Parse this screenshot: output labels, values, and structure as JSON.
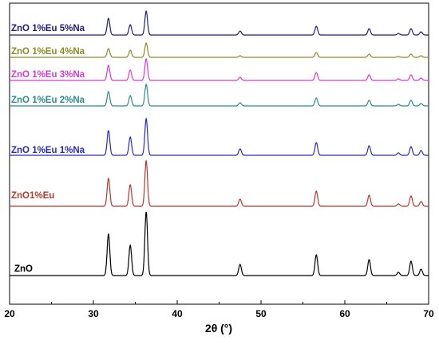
{
  "chart_data": {
    "type": "line",
    "title": "",
    "xlabel": "2θ (°)",
    "ylabel": "",
    "xlim": [
      20,
      70
    ],
    "xticks": [
      20,
      30,
      40,
      50,
      60,
      70
    ],
    "grid": false,
    "legend": "inline labels beside each trace",
    "y_units": "arbitrary intensity; traces stacked with vertical offsets",
    "peak_positions": [
      31.8,
      34.4,
      36.3,
      47.5,
      56.6,
      62.9,
      66.4,
      67.9,
      69.1
    ],
    "series": [
      {
        "name": "ZnO",
        "color": "#000000",
        "baseline": 0,
        "peaks": [
          [
            31.8,
            52
          ],
          [
            34.4,
            38
          ],
          [
            36.3,
            80
          ],
          [
            47.5,
            14
          ],
          [
            56.6,
            26
          ],
          [
            62.9,
            20
          ],
          [
            66.4,
            4
          ],
          [
            67.9,
            18
          ],
          [
            69.1,
            8
          ]
        ]
      },
      {
        "name": "ZnO1%Eu",
        "color": "#b03a2e",
        "baseline": 87,
        "peaks": [
          [
            31.8,
            35
          ],
          [
            34.4,
            27
          ],
          [
            36.3,
            57
          ],
          [
            47.5,
            9
          ],
          [
            56.6,
            19
          ],
          [
            62.9,
            14
          ],
          [
            66.4,
            3
          ],
          [
            67.9,
            13
          ],
          [
            69.1,
            6
          ]
        ]
      },
      {
        "name": "ZnO 1%Eu 1%Na",
        "color": "#2b2bb8",
        "baseline": 151,
        "peaks": [
          [
            31.8,
            31
          ],
          [
            34.4,
            23
          ],
          [
            36.3,
            46
          ],
          [
            47.5,
            8
          ],
          [
            56.6,
            16
          ],
          [
            62.9,
            12
          ],
          [
            66.4,
            3
          ],
          [
            67.9,
            11
          ],
          [
            69.1,
            6
          ]
        ]
      },
      {
        "name": "ZnO 1%Eu 2%Na",
        "color": "#2e8b8b",
        "baseline": 213,
        "peaks": [
          [
            31.8,
            18
          ],
          [
            34.4,
            13
          ],
          [
            36.3,
            27
          ],
          [
            47.5,
            4
          ],
          [
            56.6,
            10
          ],
          [
            62.9,
            7
          ],
          [
            66.4,
            2
          ],
          [
            67.9,
            7
          ],
          [
            69.1,
            3
          ]
        ]
      },
      {
        "name": "ZnO 1%Eu 3%Na",
        "color": "#d53ad3",
        "baseline": 245,
        "peaks": [
          [
            31.8,
            19
          ],
          [
            34.4,
            13
          ],
          [
            36.3,
            27
          ],
          [
            47.5,
            4
          ],
          [
            56.6,
            10
          ],
          [
            62.9,
            7
          ],
          [
            66.4,
            2
          ],
          [
            67.9,
            7
          ],
          [
            69.1,
            3
          ]
        ]
      },
      {
        "name": "ZnO 1%Eu 4%Na",
        "color": "#8b8b2a",
        "baseline": 274,
        "peaks": [
          [
            31.8,
            11
          ],
          [
            34.4,
            9
          ],
          [
            36.3,
            18
          ],
          [
            47.5,
            2
          ],
          [
            56.6,
            6
          ],
          [
            62.9,
            4
          ],
          [
            66.4,
            1
          ],
          [
            67.9,
            4
          ],
          [
            69.1,
            2
          ]
        ]
      },
      {
        "name": "ZnO 1%Eu 5%Na",
        "color": "#1c1c80",
        "baseline": 302,
        "peaks": [
          [
            31.8,
            21
          ],
          [
            34.4,
            13
          ],
          [
            36.3,
            30
          ],
          [
            47.5,
            5
          ],
          [
            56.6,
            11
          ],
          [
            62.9,
            8
          ],
          [
            66.4,
            2
          ],
          [
            67.9,
            8
          ],
          [
            69.1,
            4
          ]
        ]
      }
    ]
  }
}
